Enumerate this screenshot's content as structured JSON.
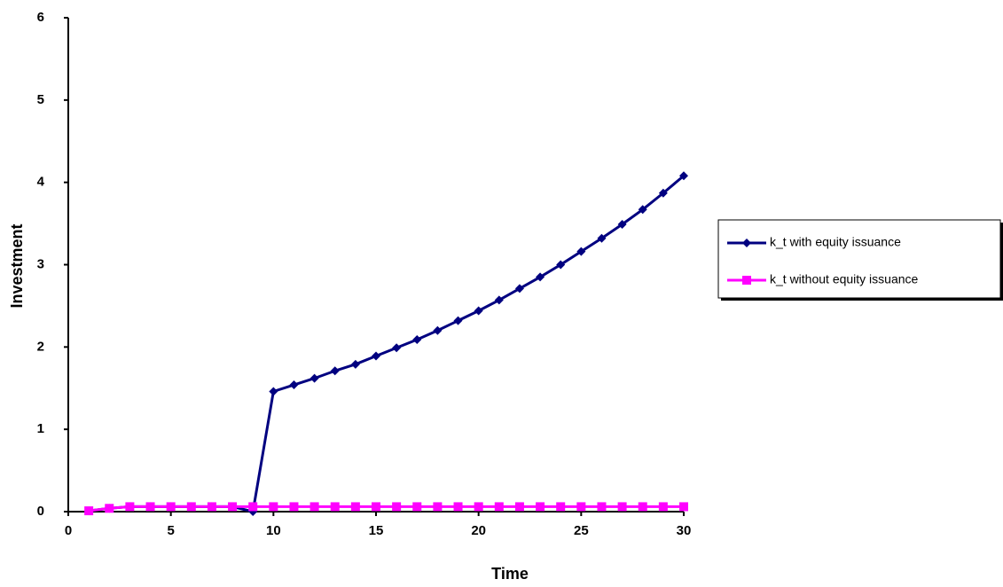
{
  "chart_data": {
    "type": "line",
    "xlabel": "Time",
    "ylabel": "Investment",
    "x": [
      1,
      2,
      3,
      4,
      5,
      6,
      7,
      8,
      9,
      10,
      11,
      12,
      13,
      14,
      15,
      16,
      17,
      18,
      19,
      20,
      21,
      22,
      23,
      24,
      25,
      26,
      27,
      28,
      29,
      30
    ],
    "series": [
      {
        "name": "k_t with equity  issuance",
        "color": "#000080",
        "marker": "diamond",
        "values": [
          0.01,
          0.04,
          0.06,
          0.06,
          0.06,
          0.06,
          0.06,
          0.06,
          0.0,
          1.46,
          1.54,
          1.62,
          1.71,
          1.79,
          1.89,
          1.99,
          2.09,
          2.2,
          2.32,
          2.44,
          2.57,
          2.71,
          2.85,
          3.0,
          3.16,
          3.32,
          3.49,
          3.67,
          3.87,
          4.08
        ]
      },
      {
        "name": "k_t without equity  issuance",
        "color": "#ff00ff",
        "marker": "square",
        "values": [
          0.01,
          0.04,
          0.06,
          0.06,
          0.06,
          0.06,
          0.06,
          0.06,
          0.06,
          0.06,
          0.06,
          0.06,
          0.06,
          0.06,
          0.06,
          0.06,
          0.06,
          0.06,
          0.06,
          0.06,
          0.06,
          0.06,
          0.06,
          0.06,
          0.06,
          0.06,
          0.06,
          0.06,
          0.06,
          0.06
        ]
      }
    ],
    "xlim": [
      0,
      30
    ],
    "xticks": [
      0,
      5,
      10,
      15,
      20,
      25,
      30
    ],
    "ylim": [
      0,
      6
    ],
    "yticks": [
      0,
      1,
      2,
      3,
      4,
      5,
      6
    ],
    "grid": false,
    "legend": "right"
  }
}
